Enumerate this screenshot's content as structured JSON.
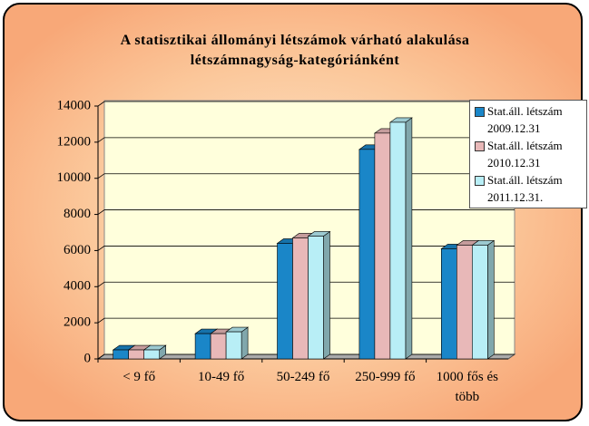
{
  "chart_data": {
    "type": "bar3d",
    "title": "A statisztikai állományi létszámok várható alakulása létszámnagyság-kategóriánként",
    "categories": [
      "< 9 fő",
      "10-49 fő",
      "50-249 fő",
      "250-999 fő",
      "1000 fős és több"
    ],
    "series": [
      {
        "name": "Stat.áll. létszám 2009.12.31",
        "color": "#1a86c8",
        "values": [
          500,
          1400,
          6400,
          11600,
          6100
        ]
      },
      {
        "name": "Stat.áll. létszám 2010.12.31",
        "color": "#e8b8b8",
        "values": [
          500,
          1400,
          6700,
          12500,
          6300
        ]
      },
      {
        "name": "Stat.áll. létszám 2011.12.31.",
        "color": "#b8eef6",
        "values": [
          500,
          1500,
          6800,
          13100,
          6300
        ]
      }
    ],
    "ylim": [
      0,
      14000
    ],
    "yticks": [
      0,
      2000,
      4000,
      6000,
      8000,
      10000,
      12000,
      14000
    ],
    "grid": true,
    "legend": "top-right"
  }
}
